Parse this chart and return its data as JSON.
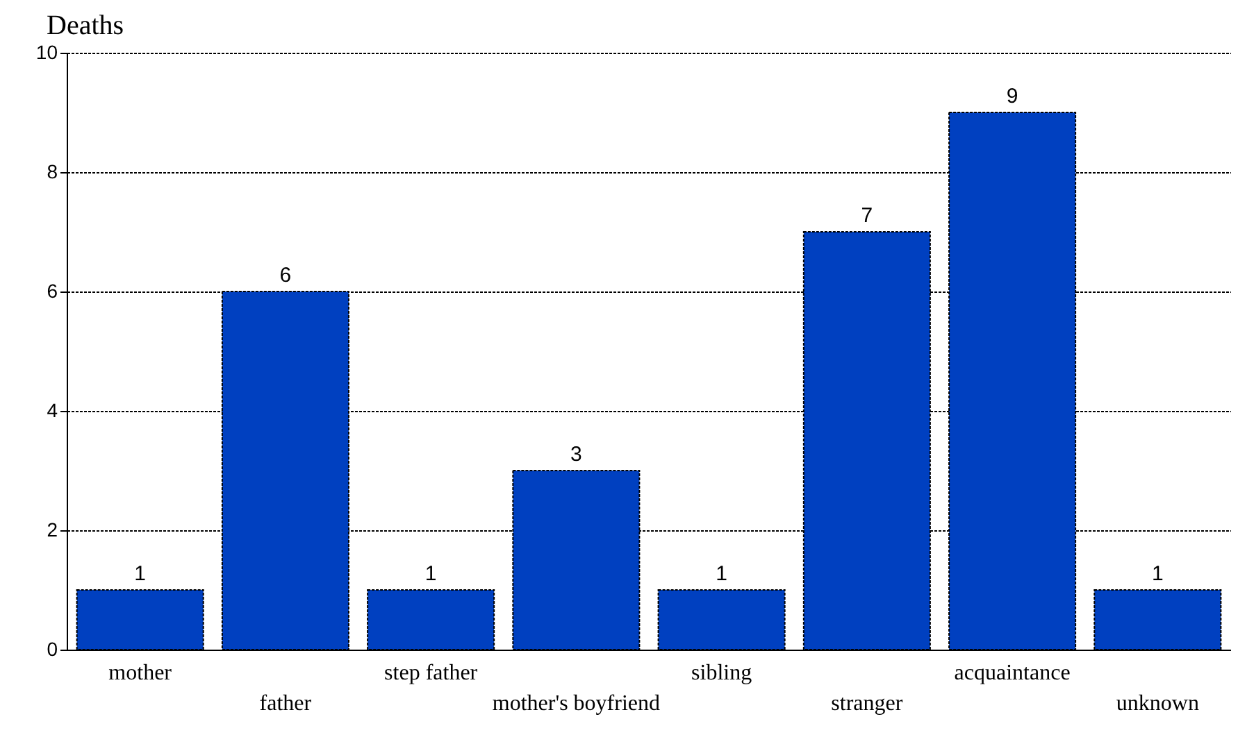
{
  "chart_data": {
    "type": "bar",
    "ylabel": "Deaths",
    "categories": [
      "mother",
      "father",
      "step father",
      "mother's boyfriend",
      "sibling",
      "stranger",
      "acquaintance",
      "unknown"
    ],
    "values": [
      1,
      6,
      1,
      3,
      1,
      7,
      9,
      1
    ],
    "color": "#0040c0",
    "ylim": [
      0,
      10
    ],
    "yticks": [
      0,
      2,
      4,
      6,
      8,
      10
    ],
    "grid": "y",
    "data_labels": true
  }
}
